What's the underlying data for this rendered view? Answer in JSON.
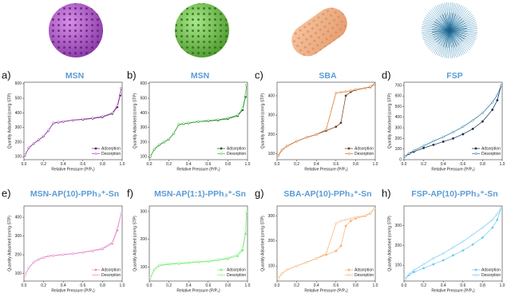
{
  "chart_data": [
    {
      "type": "line",
      "panel": "a)",
      "title": "MSN",
      "xlabel": "Relative Pressure (P/P₀)",
      "ylabel": "Quantity Adsorbed (cm³/g STP)",
      "x": [
        0.01,
        0.05,
        0.1,
        0.15,
        0.2,
        0.25,
        0.3,
        0.35,
        0.4,
        0.5,
        0.6,
        0.7,
        0.8,
        0.9,
        0.95,
        0.98,
        0.99
      ],
      "series": [
        {
          "name": "Adsorption",
          "color": "#5a1f4f",
          "values": [
            110,
            160,
            190,
            215,
            240,
            280,
            330,
            335,
            340,
            350,
            355,
            362,
            372,
            395,
            440,
            520,
            570
          ]
        },
        {
          "name": "Desorption",
          "color": "#a347c2",
          "values": [
            112,
            162,
            192,
            217,
            242,
            282,
            332,
            337,
            342,
            352,
            358,
            365,
            376,
            400,
            450,
            530,
            570
          ]
        }
      ],
      "xlim": [
        0,
        1
      ],
      "ylim": [
        80,
        610
      ],
      "xticks": [
        {
          "value": 0,
          "label": "0.0"
        },
        0.2,
        0.4,
        0.6,
        0.8,
        {
          "value": 1,
          "label": "1.0"
        }
      ],
      "yticks": [
        100,
        200,
        300,
        400,
        500,
        600
      ],
      "legend": "lower right"
    },
    {
      "type": "line",
      "panel": "b)",
      "title": "MSN",
      "xlabel": "Relative Pressure (P/P₀)",
      "ylabel": "Quantity Adsorbed (cm³/g STP)",
      "x": [
        0.01,
        0.05,
        0.1,
        0.15,
        0.2,
        0.25,
        0.3,
        0.35,
        0.4,
        0.5,
        0.6,
        0.7,
        0.8,
        0.9,
        0.95,
        0.98,
        0.99
      ],
      "series": [
        {
          "name": "Adsorption",
          "color": "#1e5a1e",
          "values": [
            100,
            150,
            180,
            200,
            220,
            260,
            320,
            325,
            330,
            340,
            345,
            350,
            360,
            380,
            420,
            510,
            590
          ]
        },
        {
          "name": "Desorption",
          "color": "#35c235",
          "values": [
            102,
            152,
            182,
            202,
            222,
            262,
            322,
            327,
            332,
            342,
            348,
            354,
            365,
            386,
            430,
            520,
            590
          ]
        }
      ],
      "xlim": [
        0,
        1
      ],
      "ylim": [
        80,
        610
      ],
      "xticks": [
        {
          "value": 0,
          "label": "0.0"
        },
        0.2,
        0.4,
        0.6,
        0.8,
        {
          "value": 1,
          "label": "1.0"
        }
      ],
      "yticks": [
        100,
        200,
        300,
        400,
        500,
        600
      ],
      "legend": "lower right"
    },
    {
      "type": "line",
      "panel": "c)",
      "title": "SBA",
      "xlabel": "Relative Pressure (P/P₀)",
      "ylabel": "Quantity Adsorbed (cm³/g STP)",
      "x": [
        0.01,
        0.05,
        0.1,
        0.2,
        0.3,
        0.4,
        0.5,
        0.6,
        0.65,
        0.7,
        0.75,
        0.8,
        0.9,
        0.95,
        0.99
      ],
      "series": [
        {
          "name": "Adsorption",
          "color": "#6b3a1a",
          "values": [
            90,
            120,
            140,
            165,
            185,
            200,
            220,
            240,
            260,
            400,
            420,
            430,
            440,
            445,
            460
          ]
        },
        {
          "name": "Desorption",
          "color": "#d2691e",
          "values": [
            90,
            120,
            140,
            165,
            185,
            200,
            225,
            415,
            418,
            422,
            426,
            432,
            440,
            447,
            460
          ]
        }
      ],
      "xlim": [
        0,
        1
      ],
      "ylim": [
        70,
        470
      ],
      "xticks": [
        {
          "value": 0,
          "label": "0.0"
        },
        0.2,
        0.4,
        0.6,
        0.8,
        {
          "value": 1,
          "label": "1.0"
        }
      ],
      "yticks": [
        100,
        200,
        300,
        400
      ],
      "legend": "lower right"
    },
    {
      "type": "line",
      "panel": "d)",
      "title": "FSP",
      "xlabel": "Relative Pressure (P/P₀)",
      "ylabel": "Quantity Adsorbed (cm³/g STP)",
      "x": [
        0.01,
        0.05,
        0.1,
        0.2,
        0.3,
        0.4,
        0.5,
        0.6,
        0.7,
        0.8,
        0.9,
        0.95,
        0.99
      ],
      "series": [
        {
          "name": "Adsorption",
          "color": "#0f2a4a",
          "values": [
            30,
            55,
            75,
            110,
            140,
            170,
            200,
            240,
            290,
            360,
            470,
            560,
            700
          ]
        },
        {
          "name": "Desorption",
          "color": "#1f6f9f",
          "values": [
            30,
            60,
            85,
            130,
            175,
            215,
            260,
            310,
            370,
            440,
            540,
            610,
            700
          ]
        }
      ],
      "xlim": [
        0,
        1
      ],
      "ylim": [
        0,
        730
      ],
      "xticks": [
        {
          "value": 0,
          "label": "0.0"
        },
        0.2,
        0.4,
        0.6,
        0.8,
        {
          "value": 1,
          "label": "1.0"
        }
      ],
      "yticks": [
        0,
        100,
        200,
        300,
        400,
        500,
        600,
        700
      ],
      "legend": "lower right"
    },
    {
      "type": "line",
      "panel": "e)",
      "title": "MSN-AP(10)-PPh₃⁺-Sn",
      "xlabel": "Relative Pressure (P/P₀)",
      "ylabel": "Quantity Adsorbed (cm³/g STP)",
      "x": [
        0.01,
        0.05,
        0.1,
        0.15,
        0.2,
        0.25,
        0.3,
        0.4,
        0.5,
        0.6,
        0.7,
        0.8,
        0.9,
        0.95,
        0.99
      ],
      "series": [
        {
          "name": "Adsorption",
          "color": "#e58fd0",
          "values": [
            90,
            130,
            160,
            175,
            185,
            192,
            195,
            200,
            205,
            212,
            220,
            230,
            260,
            330,
            420
          ]
        },
        {
          "name": "Desorption",
          "color": "#e58fd0",
          "values": [
            92,
            132,
            162,
            177,
            187,
            194,
            197,
            202,
            207,
            214,
            223,
            234,
            266,
            340,
            420
          ]
        }
      ],
      "xlim": [
        0,
        1
      ],
      "ylim": [
        60,
        460
      ],
      "xticks": [
        {
          "value": 0,
          "label": "0.0"
        },
        0.2,
        0.4,
        0.6,
        0.8,
        {
          "value": 1,
          "label": "1.0"
        }
      ],
      "yticks": [
        100,
        200,
        300,
        400
      ],
      "legend": "lower right"
    },
    {
      "type": "line",
      "panel": "f)",
      "title": "MSN-AP(1:1)-PPh₃⁺-Sn",
      "xlabel": "Relative Pressure (P/P₀)",
      "ylabel": "Quantity Adsorbed (cm³/g STP)",
      "x": [
        0.01,
        0.05,
        0.1,
        0.2,
        0.3,
        0.4,
        0.5,
        0.6,
        0.7,
        0.8,
        0.9,
        0.95,
        0.98,
        0.99
      ],
      "series": [
        {
          "name": "Adsorption",
          "color": "#7ef07e",
          "values": [
            60,
            90,
            105,
            110,
            112,
            115,
            118,
            120,
            125,
            130,
            140,
            160,
            220,
            300
          ]
        },
        {
          "name": "Desorption",
          "color": "#7ef07e",
          "values": [
            62,
            92,
            107,
            112,
            114,
            117,
            120,
            122,
            127,
            133,
            145,
            168,
            228,
            300
          ]
        }
      ],
      "xlim": [
        0,
        1
      ],
      "ylim": [
        50,
        320
      ],
      "xticks": [
        {
          "value": 0,
          "label": "0.0"
        },
        0.2,
        0.4,
        0.6,
        0.8,
        {
          "value": 1,
          "label": "1.0"
        }
      ],
      "yticks": [
        100,
        200,
        300
      ],
      "legend": "lower right"
    },
    {
      "type": "line",
      "panel": "g)",
      "title": "SBA-AP(10)-PPh₃⁺-Sn",
      "xlabel": "Relative Pressure (P/P₀)",
      "ylabel": "Quantity Adsorbed (cm³/g STP)",
      "x": [
        0.01,
        0.05,
        0.1,
        0.2,
        0.3,
        0.4,
        0.5,
        0.6,
        0.65,
        0.7,
        0.75,
        0.8,
        0.9,
        0.95,
        0.99
      ],
      "series": [
        {
          "name": "Adsorption",
          "color": "#f5b070",
          "values": [
            50,
            70,
            85,
            100,
            115,
            130,
            145,
            160,
            180,
            260,
            280,
            290,
            300,
            310,
            330
          ]
        },
        {
          "name": "Desorption",
          "color": "#f5b070",
          "values": [
            50,
            70,
            85,
            100,
            115,
            130,
            150,
            270,
            280,
            285,
            290,
            295,
            302,
            312,
            330
          ]
        }
      ],
      "xlim": [
        0,
        1
      ],
      "ylim": [
        40,
        340
      ],
      "xticks": [
        {
          "value": 0,
          "label": "0.0"
        },
        0.2,
        0.4,
        0.6,
        0.8,
        {
          "value": 1,
          "label": "1.0"
        }
      ],
      "yticks": [
        100,
        200,
        300
      ],
      "legend": "lower right"
    },
    {
      "type": "line",
      "panel": "h)",
      "title": "FSP-AP(10)-PPh₃⁺-Sn",
      "xlabel": "Relative Pressure (P/P₀)",
      "ylabel": "Quantity Adsorbed (cm³/g STP)",
      "x": [
        0.01,
        0.05,
        0.1,
        0.2,
        0.3,
        0.4,
        0.5,
        0.6,
        0.7,
        0.8,
        0.9,
        0.95,
        0.99
      ],
      "series": [
        {
          "name": "Adsorption",
          "color": "#6ec8f0",
          "values": [
            30,
            50,
            65,
            85,
            105,
            125,
            150,
            175,
            205,
            240,
            290,
            330,
            390
          ]
        },
        {
          "name": "Desorption",
          "color": "#6ec8f0",
          "values": [
            30,
            55,
            75,
            105,
            135,
            160,
            190,
            220,
            255,
            290,
            330,
            360,
            390
          ]
        }
      ],
      "xlim": [
        0,
        1
      ],
      "ylim": [
        20,
        400
      ],
      "xticks": [
        {
          "value": 0,
          "label": "0.0"
        },
        0.2,
        0.4,
        0.6,
        0.8,
        {
          "value": 1,
          "label": "1.0"
        }
      ],
      "yticks": [
        100,
        200,
        300
      ],
      "legend": "lower right"
    }
  ]
}
